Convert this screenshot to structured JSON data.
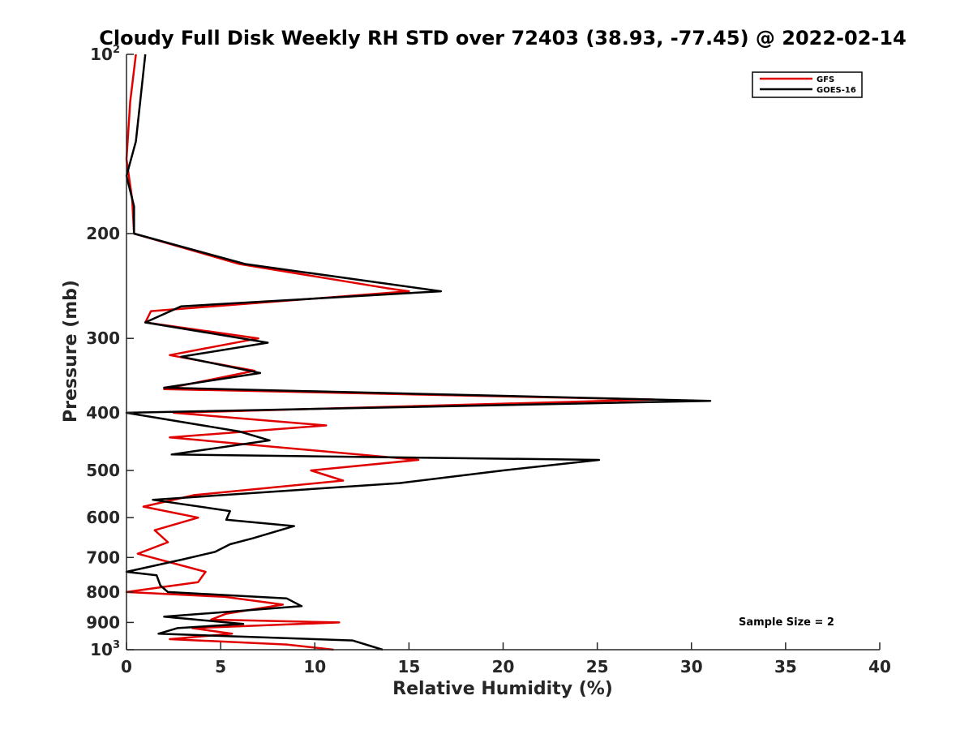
{
  "chart_data": {
    "type": "line",
    "title": "Cloudy Full Disk Weekly RH STD over 72403 (38.93, -77.45) @ 2022-02-14",
    "xlabel": "Relative Humidity (%)",
    "ylabel": "Pressure (mb)",
    "xlim": [
      0,
      40
    ],
    "ylim": [
      100,
      1000
    ],
    "y_scale": "log",
    "y_reversed": true,
    "grid": false,
    "legend_position": "top-right",
    "x_ticks": [
      "0",
      "5",
      "10",
      "15",
      "20",
      "25",
      "30",
      "35",
      "40"
    ],
    "y_ticks": [
      {
        "value": 100,
        "base": "10",
        "exp": "2"
      },
      {
        "value": 200,
        "base": "200",
        "exp": ""
      },
      {
        "value": 300,
        "base": "300",
        "exp": ""
      },
      {
        "value": 400,
        "base": "400",
        "exp": ""
      },
      {
        "value": 500,
        "base": "500",
        "exp": ""
      },
      {
        "value": 600,
        "base": "600",
        "exp": ""
      },
      {
        "value": 700,
        "base": "700",
        "exp": ""
      },
      {
        "value": 800,
        "base": "800",
        "exp": ""
      },
      {
        "value": 900,
        "base": "900",
        "exp": ""
      },
      {
        "value": 1000,
        "base": "10",
        "exp": "3"
      }
    ],
    "series": [
      {
        "name": "GFS",
        "color": "#e00000",
        "points": [
          [
            0.5,
            100
          ],
          [
            0.2,
            120
          ],
          [
            0.0,
            150
          ],
          [
            0.3,
            175
          ],
          [
            0.4,
            200
          ],
          [
            6.0,
            225
          ],
          [
            13.8,
            247
          ],
          [
            15.0,
            250
          ],
          [
            1.3,
            270
          ],
          [
            1.0,
            282
          ],
          [
            7.0,
            300
          ],
          [
            2.3,
            320
          ],
          [
            6.8,
            340
          ],
          [
            2.0,
            365
          ],
          [
            28.0,
            380
          ],
          [
            2.5,
            400
          ],
          [
            10.6,
            420
          ],
          [
            2.3,
            440
          ],
          [
            15.5,
            480
          ],
          [
            9.8,
            500
          ],
          [
            11.5,
            520
          ],
          [
            3.6,
            550
          ],
          [
            0.9,
            575
          ],
          [
            3.8,
            600
          ],
          [
            1.5,
            630
          ],
          [
            2.2,
            660
          ],
          [
            0.6,
            690
          ],
          [
            4.2,
            740
          ],
          [
            3.8,
            770
          ],
          [
            0.0,
            800
          ],
          [
            5.2,
            815
          ],
          [
            8.3,
            840
          ],
          [
            5.3,
            870
          ],
          [
            4.5,
            890
          ],
          [
            11.3,
            900
          ],
          [
            3.5,
            920
          ],
          [
            5.6,
            940
          ],
          [
            2.3,
            960
          ],
          [
            8.5,
            980
          ],
          [
            11.0,
            1000
          ]
        ]
      },
      {
        "name": "GOES-16",
        "color": "#000000",
        "points": [
          [
            1.0,
            100
          ],
          [
            0.5,
            140
          ],
          [
            0.0,
            160
          ],
          [
            0.4,
            180
          ],
          [
            0.4,
            200
          ],
          [
            6.3,
            225
          ],
          [
            16.7,
            250
          ],
          [
            2.9,
            265
          ],
          [
            1.0,
            282
          ],
          [
            7.5,
            305
          ],
          [
            2.9,
            322
          ],
          [
            7.1,
            343
          ],
          [
            2.0,
            363
          ],
          [
            31.0,
            382
          ],
          [
            0.0,
            400
          ],
          [
            6.0,
            430
          ],
          [
            7.6,
            445
          ],
          [
            2.4,
            470
          ],
          [
            25.1,
            480
          ],
          [
            20.0,
            500
          ],
          [
            14.5,
            525
          ],
          [
            1.4,
            560
          ],
          [
            5.5,
            585
          ],
          [
            5.3,
            605
          ],
          [
            8.9,
            620
          ],
          [
            6.7,
            650
          ],
          [
            5.5,
            665
          ],
          [
            4.7,
            685
          ],
          [
            3.0,
            705
          ],
          [
            0.0,
            740
          ],
          [
            1.6,
            750
          ],
          [
            1.8,
            780
          ],
          [
            2.2,
            800
          ],
          [
            8.5,
            820
          ],
          [
            9.3,
            845
          ],
          [
            2.0,
            880
          ],
          [
            6.2,
            905
          ],
          [
            2.7,
            920
          ],
          [
            1.7,
            940
          ],
          [
            12.0,
            965
          ],
          [
            13.6,
            1000
          ]
        ]
      }
    ],
    "annotations": [
      "Sample Size = 2"
    ]
  }
}
